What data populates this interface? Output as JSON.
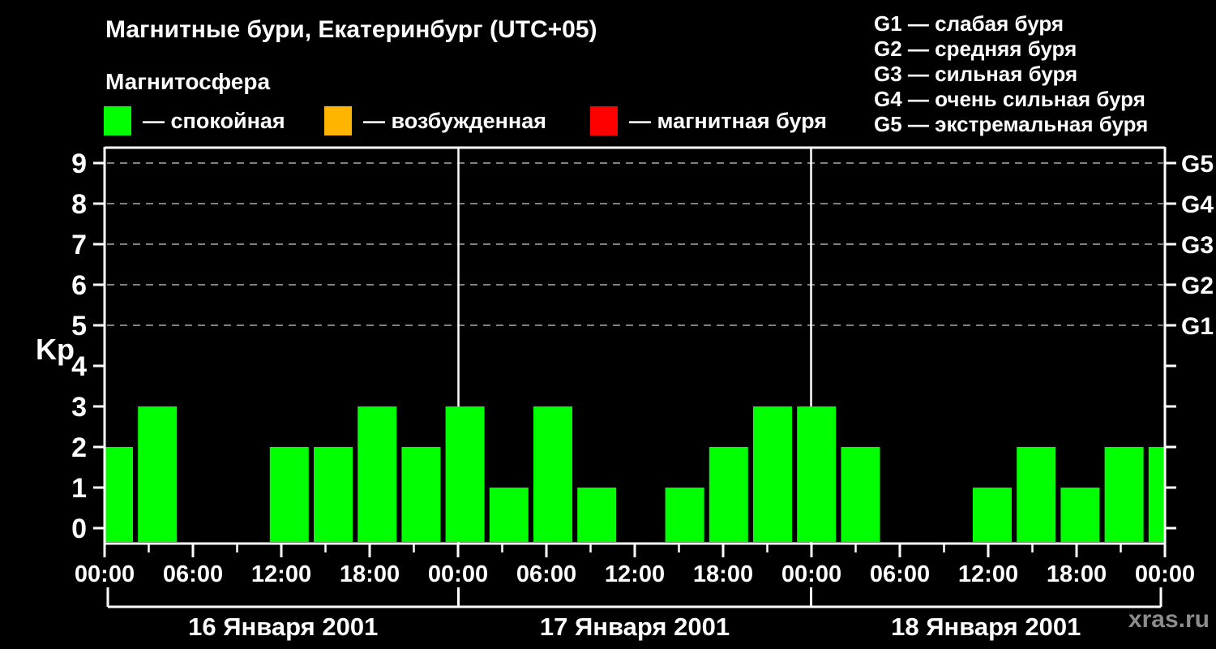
{
  "header": {
    "title": "Магнитные бури, Екатеринбург (UTC+05)",
    "subtitle": "Магнитосфера"
  },
  "magnetosphere_legend": {
    "items": [
      {
        "name": "quiet",
        "label": "— спокойная",
        "color": "#00ff00"
      },
      {
        "name": "excited",
        "label": "— возбужденная",
        "color": "#ffb400"
      },
      {
        "name": "storm",
        "label": "— магнитная буря",
        "color": "#ff0000"
      }
    ]
  },
  "storm_scale": {
    "items": [
      {
        "label": "G1 — слабая буря"
      },
      {
        "label": "G2 — средняя буря"
      },
      {
        "label": "G3 — сильная буря"
      },
      {
        "label": "G4 — очень сильная буря"
      },
      {
        "label": "G5 — экстремальная буря"
      }
    ]
  },
  "axes": {
    "y_label": "Kp",
    "y_ticks": [
      "0",
      "1",
      "2",
      "3",
      "4",
      "5",
      "6",
      "7",
      "8",
      "9"
    ],
    "right_labels": [
      {
        "text": "G1",
        "value": 5
      },
      {
        "text": "G2",
        "value": 6
      },
      {
        "text": "G3",
        "value": 7
      },
      {
        "text": "G4",
        "value": 8
      },
      {
        "text": "G5",
        "value": 9
      }
    ],
    "time_labels": [
      "00:00",
      "06:00",
      "12:00",
      "18:00",
      "00:00",
      "06:00",
      "12:00",
      "18:00",
      "00:00",
      "06:00",
      "12:00",
      "18:00",
      "00:00"
    ],
    "day_labels": [
      "16 Января 2001",
      "17 Января 2001",
      "18 Января 2001"
    ]
  },
  "watermark": "xras.ru",
  "colors": {
    "background": "#000000",
    "quiet": "#00ff00",
    "excited": "#ffb400",
    "storm": "#ff0000",
    "axis": "#ffffff",
    "grid": "#808080",
    "watermark": "#8c8c8c"
  },
  "chart_data": {
    "type": "bar",
    "title": "Магнитные бури, Екатеринбург (UTC+05)",
    "ylabel": "Kp",
    "ylim": [
      0,
      9
    ],
    "bar_interval_hours": 3,
    "grid": "dashed horizontal lines at Kp 5,6,7,8,9 (G1–G5)",
    "legend_position": "top",
    "days": [
      {
        "date": "16 Января 2001",
        "kp": [
          2,
          3,
          0,
          0,
          2,
          2,
          3,
          2
        ]
      },
      {
        "date": "17 Января 2001",
        "kp": [
          3,
          1,
          3,
          1,
          0,
          1,
          2,
          3
        ]
      },
      {
        "date": "18 Января 2001",
        "kp": [
          3,
          2,
          0,
          0,
          1,
          2,
          1,
          2
        ]
      }
    ],
    "next_interval_partial_kp": 2,
    "kp_color_rule": {
      "quiet_max": 3,
      "excited_max": 4,
      "storm_min": 5
    }
  }
}
